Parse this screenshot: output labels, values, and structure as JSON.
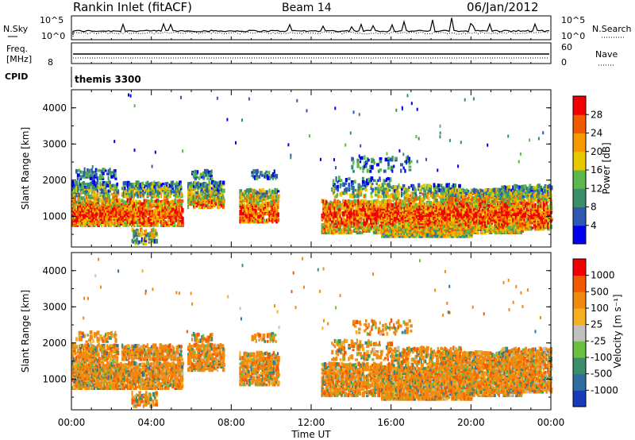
{
  "header": {
    "title": "Rankin Inlet (fitACF)",
    "beam": "Beam 14",
    "date": "06/Jan/2012"
  },
  "status_panels": {
    "nsky_label": "N.Sky",
    "nsearch_label": "N.Search",
    "noise_ticks": [
      "10^5",
      "10^0"
    ],
    "freq_label_1": "Freq.",
    "freq_label_2": "[MHz]",
    "freq_ticks": [
      "8"
    ],
    "nave_label": "Nave",
    "nave_ticks": [
      "60",
      "0"
    ],
    "cpid_label": "CPID",
    "cpid_value": "themis 3300"
  },
  "chart_data": [
    {
      "type": "heatmap",
      "name": "power-panel",
      "ylabel": "Slant Range [km]",
      "ylim": [
        150,
        4500
      ],
      "yticks": [
        1000,
        2000,
        3000,
        4000
      ],
      "xlim": [
        0,
        24
      ],
      "xticks": [
        "00:00",
        "04:00",
        "08:00",
        "12:00",
        "16:00",
        "20:00",
        "00:00"
      ],
      "colorbar_label": "Power [dB]",
      "colorbar_ticks": [
        "4",
        "8",
        "12",
        "16",
        "20",
        "24",
        "28"
      ],
      "colorbar_colors": [
        "#0000ee",
        "#2f58b0",
        "#3a8f6a",
        "#5cb84a",
        "#e8c800",
        "#f59a00",
        "#f25a00",
        "#f00000"
      ]
    },
    {
      "type": "heatmap",
      "name": "velocity-panel",
      "ylabel": "Slant Range [km]",
      "ylim": [
        150,
        4500
      ],
      "yticks": [
        1000,
        2000,
        3000,
        4000
      ],
      "xlim": [
        0,
        24
      ],
      "xticks": [
        "00:00",
        "04:00",
        "08:00",
        "12:00",
        "16:00",
        "20:00",
        "00:00"
      ],
      "xlabel": "Time UT",
      "colorbar_label": "Velocity [m s⁻¹]",
      "colorbar_ticks": [
        "1000",
        "500",
        "100",
        "25",
        "-25",
        "-100",
        "-500",
        "-1000"
      ],
      "colorbar_colors": [
        "#1a3bb8",
        "#2f6ea0",
        "#3a8f6a",
        "#6cc040",
        "#c0c0c0",
        "#f5b020",
        "#f08a10",
        "#f25a00",
        "#f00000"
      ]
    }
  ]
}
